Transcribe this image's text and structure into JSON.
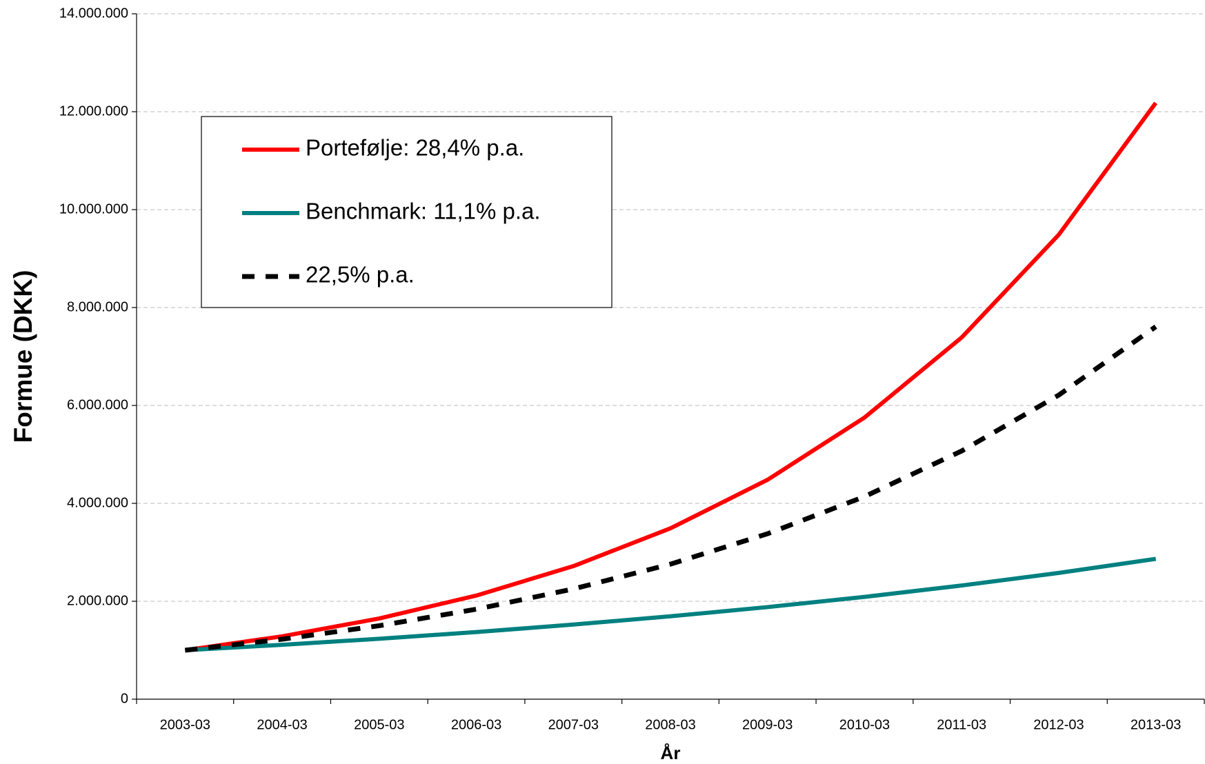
{
  "chart_data": {
    "type": "line",
    "y_label": "Formue (DKK)",
    "x_label": "År",
    "categories": [
      "2003-03",
      "2004-03",
      "2005-03",
      "2006-03",
      "2007-03",
      "2008-03",
      "2009-03",
      "2010-03",
      "2011-03",
      "2012-03",
      "2013-03"
    ],
    "series": [
      {
        "name": "Portefølje: 28,4% p.a.",
        "color": "#ff0000",
        "style": "solid",
        "values": [
          1000000,
          1284000,
          1649000,
          2117000,
          2718000,
          3490000,
          4481000,
          5754000,
          7388000,
          9486000,
          12180000
        ]
      },
      {
        "name": "Benchmark: 11,1% p.a.",
        "color": "#008080",
        "style": "solid",
        "values": [
          1000000,
          1111000,
          1234000,
          1371000,
          1524000,
          1693000,
          1881000,
          2090000,
          2322000,
          2579000,
          2866000
        ]
      },
      {
        "name": "22,5% p.a.",
        "color": "#000000",
        "style": "dashed",
        "values": [
          1000000,
          1225000,
          1501000,
          1838000,
          2252000,
          2758000,
          3379000,
          4139000,
          5070000,
          6211000,
          7609000
        ]
      }
    ],
    "ylim": [
      0,
      14000000
    ],
    "yticks": [
      0,
      {
        "value": 2000000,
        "label": "2.000.000"
      },
      {
        "value": 4000000,
        "label": "4.000.000"
      },
      {
        "value": 6000000,
        "label": "6.000.000"
      },
      {
        "value": 8000000,
        "label": "8.000.000"
      },
      {
        "value": 10000000,
        "label": "10.000.000"
      },
      {
        "value": 12000000,
        "label": "12.000.000"
      },
      {
        "value": 14000000,
        "label": "14.000.000"
      }
    ],
    "grid": true,
    "legend": "upper left"
  }
}
